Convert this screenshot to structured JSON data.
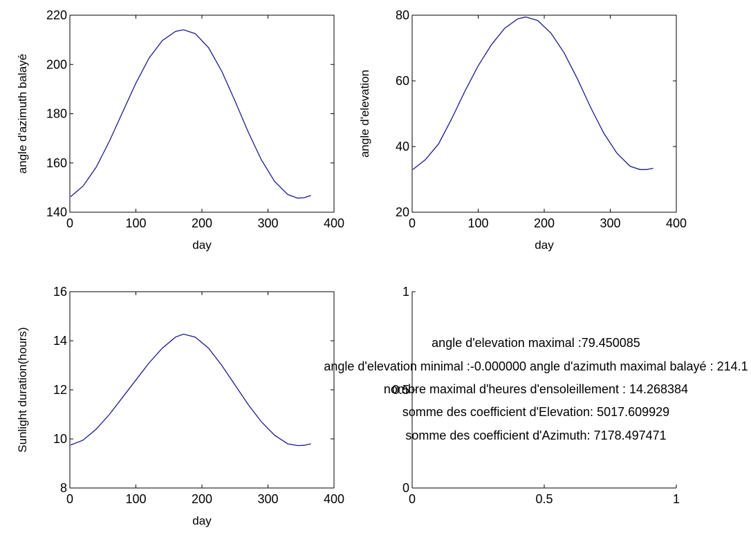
{
  "colors": {
    "line": "#1a1a8c",
    "axes": "#000000",
    "background": "#ffffff"
  },
  "chart_data": [
    {
      "type": "line",
      "xlabel": "day",
      "ylabel": "angle d'azimuth balayé",
      "xlim": [
        0,
        400
      ],
      "ylim": [
        140,
        220
      ],
      "xticks": [
        "0",
        "100",
        "200",
        "300",
        "400"
      ],
      "yticks": [
        "140",
        "160",
        "180",
        "200",
        "220"
      ],
      "grid": false,
      "series": [
        {
          "x": [
            1,
            20,
            40,
            60,
            80,
            100,
            120,
            140,
            160,
            172,
            190,
            210,
            230,
            250,
            270,
            290,
            310,
            330,
            345,
            355,
            365
          ],
          "y": [
            146.3,
            150.6,
            158.3,
            168.9,
            180.7,
            192.4,
            202.6,
            209.7,
            213.4,
            214.1,
            212.5,
            206.8,
            197.3,
            185.2,
            172.6,
            161.3,
            152.5,
            147.2,
            145.7,
            145.9,
            146.8
          ]
        }
      ]
    },
    {
      "type": "line",
      "xlabel": "day",
      "ylabel": "angle d'elevation",
      "xlim": [
        0,
        400
      ],
      "ylim": [
        20,
        80
      ],
      "xticks": [
        "0",
        "100",
        "200",
        "300",
        "400"
      ],
      "yticks": [
        "20",
        "40",
        "60",
        "80"
      ],
      "grid": false,
      "series": [
        {
          "x": [
            1,
            20,
            40,
            60,
            80,
            100,
            120,
            140,
            160,
            172,
            190,
            210,
            230,
            250,
            270,
            290,
            310,
            330,
            345,
            355,
            365
          ],
          "y": [
            33.0,
            36.0,
            40.8,
            48.5,
            56.9,
            64.6,
            71.0,
            76.0,
            78.9,
            79.45,
            78.4,
            74.6,
            68.6,
            60.7,
            52.0,
            44.1,
            38.0,
            34.0,
            33.0,
            33.0,
            33.4
          ]
        }
      ]
    },
    {
      "type": "line",
      "xlabel": "day",
      "ylabel": "Sunlight duration(hours)",
      "xlim": [
        0,
        400
      ],
      "ylim": [
        8,
        16
      ],
      "xticks": [
        "0",
        "100",
        "200",
        "300",
        "400"
      ],
      "yticks": [
        "8",
        "10",
        "12",
        "14",
        "16"
      ],
      "grid": false,
      "series": [
        {
          "x": [
            1,
            20,
            40,
            60,
            80,
            100,
            120,
            140,
            160,
            172,
            190,
            210,
            230,
            250,
            270,
            290,
            310,
            330,
            345,
            355,
            365
          ],
          "y": [
            9.75,
            9.95,
            10.4,
            11.0,
            11.7,
            12.4,
            13.1,
            13.7,
            14.15,
            14.27,
            14.15,
            13.7,
            13.0,
            12.2,
            11.4,
            10.7,
            10.15,
            9.8,
            9.73,
            9.74,
            9.8
          ]
        }
      ]
    },
    {
      "type": "text",
      "xlim": [
        0,
        1
      ],
      "ylim": [
        0,
        1
      ],
      "xticks": [
        "0",
        "0.5",
        "1"
      ],
      "yticks": [
        "0",
        "0.5",
        "1"
      ],
      "grid": false,
      "annotations": [
        "angle d'elevation maximal :79.450085",
        "angle d'elevation minimal :-0.000000 angle d'azimuth maximal balayé : 214.1",
        "nombre maximal d'heures d'ensoleillement : 14.268384",
        "somme des coefficient d'Elevation: 5017.609929",
        "somme des coefficient d'Azimuth: 7178.497471"
      ]
    }
  ]
}
